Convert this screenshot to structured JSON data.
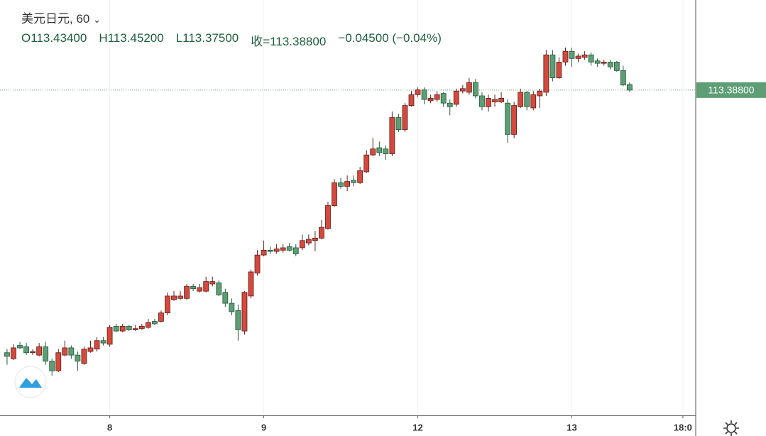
{
  "chart_data": {
    "type": "candlestick",
    "title": "美元日元, 60",
    "ohlc_legend": [
      "O113.43400",
      "H113.45200",
      "L113.37500",
      "收=113.38800",
      "−0.04500 (−0.04%)"
    ],
    "open": [
      111.21,
      111.16,
      111.27,
      111.26,
      111.21,
      111.19,
      111.26,
      111.14,
      111.06,
      111.19,
      111.25,
      111.19,
      111.12,
      111.22,
      111.24,
      111.31,
      111.28,
      111.43,
      111.39,
      111.43,
      111.4,
      111.41,
      111.42,
      111.47,
      111.47,
      111.54,
      111.65,
      111.66,
      111.66,
      111.76,
      111.72,
      111.72,
      111.78,
      111.79,
      111.71,
      111.62,
      111.56,
      111.39,
      111.68,
      111.87,
      112.02,
      112.06,
      112.05,
      112.06,
      112.09,
      112.08,
      112.08,
      112.12,
      112.14,
      112.16,
      112.24,
      112.43,
      112.62,
      112.59,
      112.64,
      112.62,
      112.71,
      112.85,
      112.91,
      112.9,
      112.86,
      113.16,
      113.06,
      113.26,
      113.35,
      113.39,
      113.3,
      113.31,
      113.36,
      113.28,
      113.27,
      113.38,
      113.37,
      113.45,
      113.34,
      113.25,
      113.29,
      113.29,
      113.28,
      113.02,
      113.25,
      113.37,
      113.24,
      113.34,
      113.37,
      113.68,
      113.49,
      113.62,
      113.71,
      113.65,
      113.66,
      113.68,
      113.63,
      113.61,
      113.62,
      113.62,
      113.55,
      113.434
    ],
    "high": [
      111.24,
      111.28,
      111.3,
      111.29,
      111.24,
      111.29,
      111.3,
      111.16,
      111.24,
      111.31,
      111.27,
      111.22,
      111.26,
      111.31,
      111.34,
      111.34,
      111.44,
      111.45,
      111.45,
      111.44,
      111.44,
      111.45,
      111.49,
      111.49,
      111.56,
      111.71,
      111.72,
      111.72,
      111.78,
      111.78,
      111.78,
      111.84,
      111.84,
      111.81,
      111.74,
      111.66,
      111.61,
      111.72,
      111.9,
      112.06,
      112.14,
      112.09,
      112.11,
      112.11,
      112.12,
      112.11,
      112.19,
      112.19,
      112.22,
      112.31,
      112.46,
      112.65,
      112.66,
      112.68,
      112.68,
      112.75,
      112.89,
      112.99,
      112.96,
      112.93,
      113.21,
      113.19,
      113.28,
      113.38,
      113.41,
      113.41,
      113.35,
      113.38,
      113.37,
      113.31,
      113.4,
      113.43,
      113.49,
      113.48,
      113.37,
      113.35,
      113.35,
      113.37,
      113.31,
      113.29,
      113.4,
      113.38,
      113.38,
      113.4,
      113.72,
      113.72,
      113.66,
      113.74,
      113.74,
      113.69,
      113.71,
      113.7,
      113.65,
      113.64,
      113.64,
      113.63,
      113.59,
      113.452
    ],
    "low": [
      111.11,
      111.15,
      111.24,
      111.19,
      111.19,
      111.18,
      111.11,
      111.02,
      111.05,
      111.18,
      111.16,
      111.06,
      111.11,
      111.21,
      111.22,
      111.27,
      111.26,
      111.38,
      111.38,
      111.39,
      111.39,
      111.4,
      111.41,
      111.44,
      111.46,
      111.52,
      111.64,
      111.65,
      111.65,
      111.72,
      111.71,
      111.71,
      111.76,
      111.68,
      111.59,
      111.52,
      111.31,
      111.36,
      111.66,
      111.85,
      112.01,
      112.03,
      112.03,
      112.04,
      112.05,
      112.01,
      112.06,
      112.1,
      112.05,
      112.15,
      112.23,
      112.42,
      112.57,
      112.55,
      112.59,
      112.61,
      112.7,
      112.84,
      112.84,
      112.81,
      112.84,
      113.04,
      113.04,
      113.25,
      113.33,
      113.27,
      113.28,
      113.29,
      113.25,
      113.18,
      113.25,
      113.36,
      113.35,
      113.32,
      113.22,
      113.21,
      113.25,
      113.28,
      112.95,
      112.99,
      113.24,
      113.22,
      113.22,
      113.24,
      113.34,
      113.46,
      113.48,
      113.59,
      113.58,
      113.62,
      113.64,
      113.59,
      113.58,
      113.59,
      113.56,
      113.54,
      113.42,
      113.375
    ],
    "close": [
      111.18,
      111.25,
      111.25,
      111.21,
      111.22,
      111.26,
      111.14,
      111.06,
      111.21,
      111.25,
      111.19,
      111.14,
      111.24,
      111.25,
      111.31,
      111.29,
      111.42,
      111.39,
      111.43,
      111.4,
      111.41,
      111.43,
      111.46,
      111.45,
      111.54,
      111.68,
      111.68,
      111.68,
      111.76,
      111.74,
      111.75,
      111.8,
      111.8,
      111.69,
      111.62,
      111.55,
      111.4,
      111.71,
      111.88,
      112.02,
      112.06,
      112.05,
      112.07,
      112.08,
      112.06,
      112.03,
      112.14,
      112.15,
      112.16,
      112.25,
      112.43,
      112.62,
      112.59,
      112.63,
      112.62,
      112.72,
      112.85,
      112.9,
      112.87,
      112.86,
      113.16,
      113.06,
      113.26,
      113.35,
      113.39,
      113.31,
      113.32,
      113.35,
      113.28,
      113.25,
      113.38,
      113.4,
      113.45,
      113.34,
      113.25,
      113.32,
      113.31,
      113.32,
      113.02,
      113.26,
      113.37,
      113.25,
      113.35,
      113.38,
      113.68,
      113.49,
      113.62,
      113.71,
      113.65,
      113.67,
      113.68,
      113.62,
      113.61,
      113.62,
      113.58,
      113.55,
      113.43,
      113.388
    ],
    "up_color": "#d5493d",
    "down_color": "#5d9e75",
    "ylim": [
      110.69,
      114.135
    ],
    "xlim": [
      -1.1,
      107.3
    ],
    "xticks": [
      {
        "value": 16,
        "label": "8"
      },
      {
        "value": 40,
        "label": "9"
      },
      {
        "value": 64,
        "label": "12"
      },
      {
        "value": 88,
        "label": "13"
      },
      {
        "value": 105.3,
        "label": "18:0"
      }
    ],
    "grid": true,
    "last_price": {
      "value": 113.388,
      "label": "113.38800"
    }
  }
}
